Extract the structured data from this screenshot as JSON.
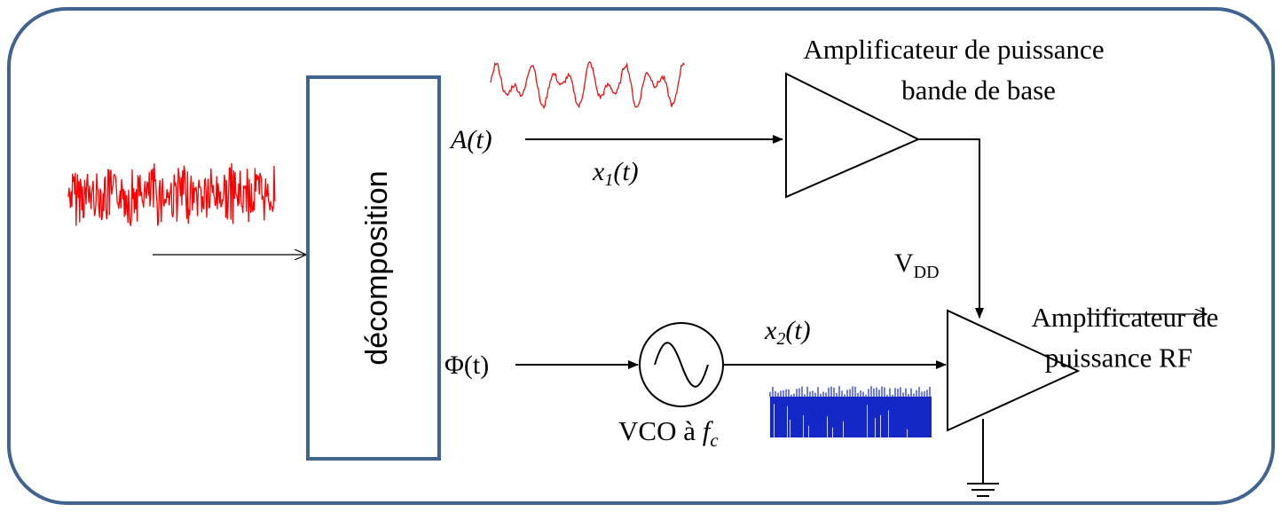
{
  "diagram": {
    "decomposition_label": "décomposition",
    "amplitude_signal": "A(t)",
    "phase_signal": "Φ(t)",
    "x1_label": "x",
    "x1_sub": "1",
    "x1_tail": "(t)",
    "x2_label": "x",
    "x2_sub": "2",
    "x2_tail": "(t)",
    "bb_amp_line1": "Amplificateur de puissance",
    "bb_amp_line2": "bande de base",
    "vdd_main": "V",
    "vdd_sub": "DD",
    "rf_amp_line1": "Amplificateur de",
    "rf_amp_line2": "puissance RF",
    "vco_text": "VCO à ",
    "vco_f": "f",
    "vco_sub": "c"
  },
  "colors": {
    "frame_border": "#41638f",
    "decomposition_border": "#41638f",
    "input_signal": "#ff0000",
    "envelope_signal": "#ee1010",
    "rf_signal": "#1020d0",
    "lines": "#000000"
  },
  "icons": [
    "sine-wave-icon",
    "ground-icon",
    "arrow-icon"
  ]
}
